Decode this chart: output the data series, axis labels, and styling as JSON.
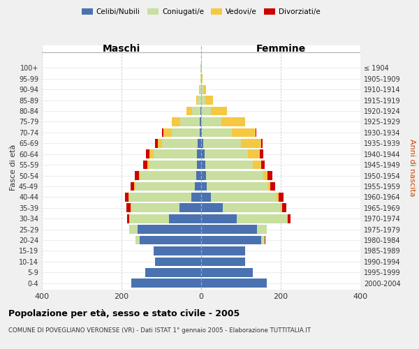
{
  "age_groups": [
    "0-4",
    "5-9",
    "10-14",
    "15-19",
    "20-24",
    "25-29",
    "30-34",
    "35-39",
    "40-44",
    "45-49",
    "50-54",
    "55-59",
    "60-64",
    "65-69",
    "70-74",
    "75-79",
    "80-84",
    "85-89",
    "90-94",
    "95-99",
    "100+"
  ],
  "birth_years": [
    "2000-2004",
    "1995-1999",
    "1990-1994",
    "1985-1989",
    "1980-1984",
    "1975-1979",
    "1970-1974",
    "1965-1969",
    "1960-1964",
    "1955-1959",
    "1950-1954",
    "1945-1949",
    "1940-1944",
    "1935-1939",
    "1930-1934",
    "1925-1929",
    "1920-1924",
    "1915-1919",
    "1910-1914",
    "1905-1909",
    "≤ 1904"
  ],
  "male_celibe": [
    175,
    140,
    115,
    120,
    155,
    160,
    80,
    55,
    25,
    15,
    12,
    10,
    10,
    8,
    4,
    3,
    2,
    0,
    0,
    0,
    0
  ],
  "male_coniugato": [
    0,
    0,
    0,
    0,
    10,
    20,
    100,
    120,
    155,
    150,
    140,
    120,
    110,
    90,
    70,
    50,
    20,
    8,
    3,
    2,
    1
  ],
  "male_vedovo": [
    0,
    0,
    0,
    0,
    0,
    0,
    1,
    2,
    2,
    3,
    5,
    5,
    10,
    10,
    20,
    20,
    15,
    5,
    3,
    0,
    0
  ],
  "male_divorziato": [
    0,
    0,
    0,
    0,
    0,
    0,
    5,
    10,
    10,
    10,
    10,
    10,
    8,
    8,
    5,
    0,
    0,
    0,
    0,
    0,
    0
  ],
  "female_celibe": [
    165,
    130,
    110,
    110,
    150,
    140,
    90,
    55,
    25,
    14,
    12,
    10,
    8,
    5,
    2,
    0,
    0,
    0,
    0,
    0,
    0
  ],
  "female_coniugata": [
    0,
    0,
    0,
    0,
    10,
    25,
    125,
    145,
    165,
    155,
    145,
    120,
    110,
    95,
    75,
    50,
    25,
    10,
    5,
    2,
    1
  ],
  "female_vedova": [
    0,
    0,
    0,
    0,
    0,
    0,
    2,
    4,
    5,
    5,
    10,
    20,
    30,
    50,
    60,
    60,
    40,
    20,
    8,
    2,
    0
  ],
  "female_divorziata": [
    0,
    0,
    0,
    0,
    2,
    0,
    8,
    10,
    12,
    12,
    12,
    10,
    8,
    5,
    2,
    0,
    0,
    0,
    0,
    0,
    0
  ],
  "color_celibe": "#4a72b0",
  "color_coniugato": "#c8dfa0",
  "color_vedovo": "#f5c842",
  "color_divorziato": "#cc0000",
  "title": "Popolazione per età, sesso e stato civile - 2005",
  "subtitle": "COMUNE DI POVEGLIANO VERONESE (VR) - Dati ISTAT 1° gennaio 2005 - Elaborazione TUTTITALIA.IT",
  "xlabel_left": "Maschi",
  "xlabel_right": "Femmine",
  "ylabel_left": "Fasce di età",
  "ylabel_right": "Anni di nascita",
  "xlim": 400,
  "bg_color": "#f0f0f0",
  "plot_bg": "#ffffff"
}
